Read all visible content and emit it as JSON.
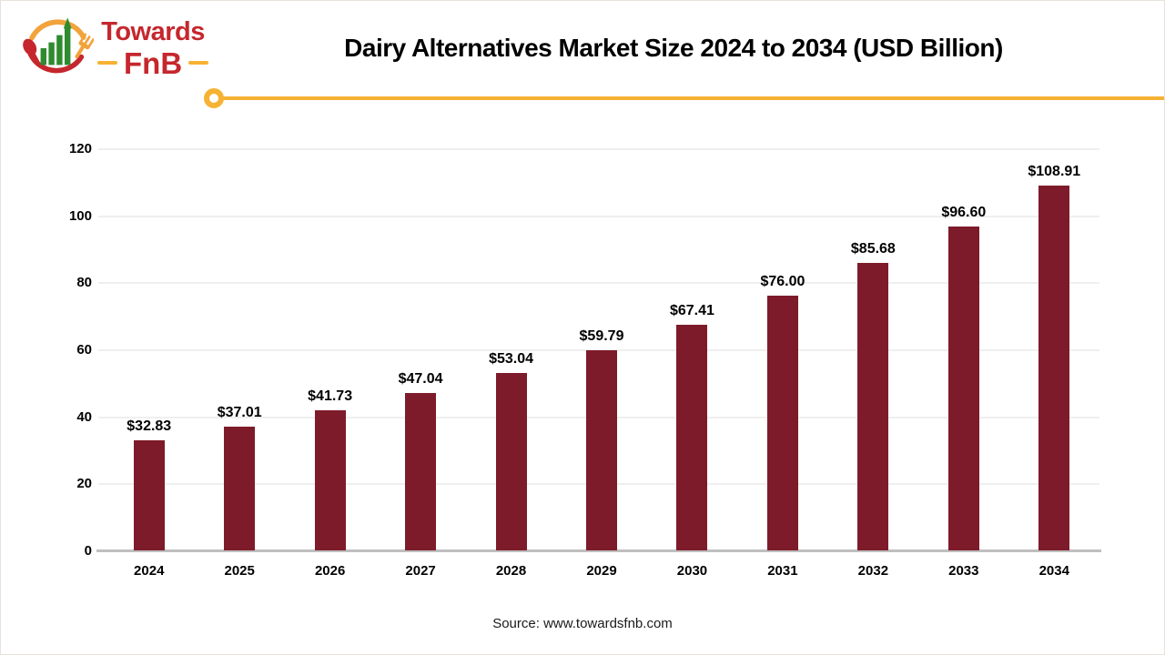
{
  "header": {
    "logo": {
      "icon": "towards-fnb-logo",
      "name_line1": "Towards",
      "name_line2": "FnB"
    },
    "title": "Dairy Alternatives Market Size 2024 to 2034 (USD Billion)"
  },
  "chart_data": {
    "type": "bar",
    "title": "Dairy Alternatives Market Size 2024 to 2034 (USD Billion)",
    "categories": [
      "2024",
      "2025",
      "2026",
      "2027",
      "2028",
      "2029",
      "2030",
      "2031",
      "2032",
      "2033",
      "2034"
    ],
    "values": [
      32.83,
      37.01,
      41.73,
      47.04,
      53.04,
      59.79,
      67.41,
      76.0,
      85.68,
      96.6,
      108.91
    ],
    "value_labels": [
      "$32.83",
      "$37.01",
      "$41.73",
      "$47.04",
      "$53.04",
      "$59.79",
      "$67.41",
      "$76.00",
      "$85.68",
      "$96.60",
      "$108.91"
    ],
    "xlabel": "",
    "ylabel": "",
    "ylim": [
      0,
      120
    ],
    "yticks": [
      0,
      20,
      40,
      60,
      80,
      100,
      120
    ],
    "grid": true,
    "legend": "none",
    "bar_color": "#7E1B2A"
  },
  "footer": {
    "source": "Source: www.towardsfnb.com"
  },
  "colors": {
    "bar": "#7E1B2A",
    "accent_yellow": "#F6B233",
    "logo_red": "#C5272D",
    "logo_green": "#2E8B2E",
    "gridline": "#EFEFEF",
    "axis_line": "#BFBFBF",
    "text": "#000000"
  }
}
